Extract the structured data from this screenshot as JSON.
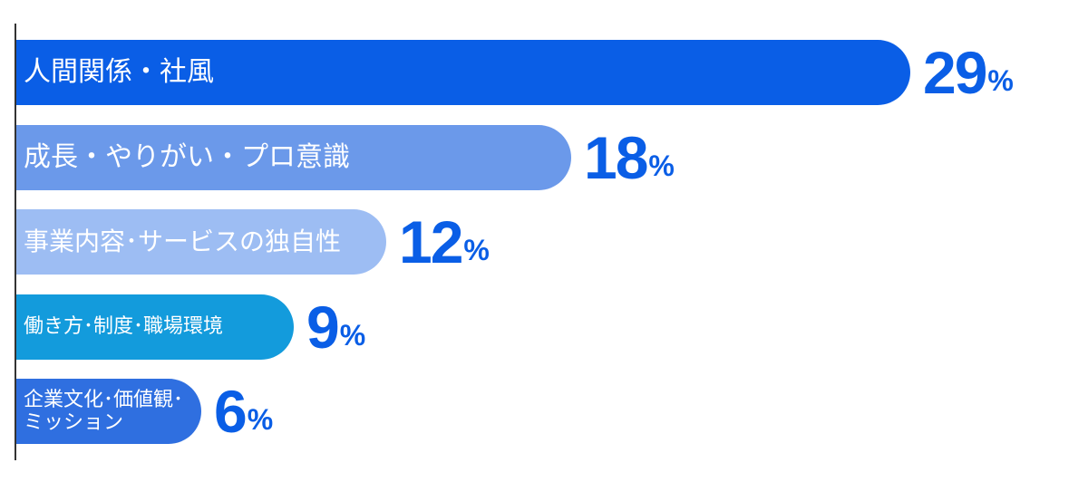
{
  "chart_data": {
    "type": "bar",
    "orientation": "horizontal",
    "categories": [
      "人間関係・社風",
      "成長・やりがい・プロ意識",
      "事業内容･サービスの独自性",
      "働き方･制度･職場環境",
      "企業文化･価値観･\nミッション"
    ],
    "values": [
      29,
      18,
      12,
      9,
      6
    ],
    "unit": "%",
    "colors": [
      "#0a5ee6",
      "#6b99ea",
      "#9dbdf3",
      "#139bdc",
      "#2f6fe0"
    ],
    "value_label_color": "#0a5ee6",
    "xlim": [
      0,
      29
    ],
    "grid": false,
    "legend": "none"
  }
}
